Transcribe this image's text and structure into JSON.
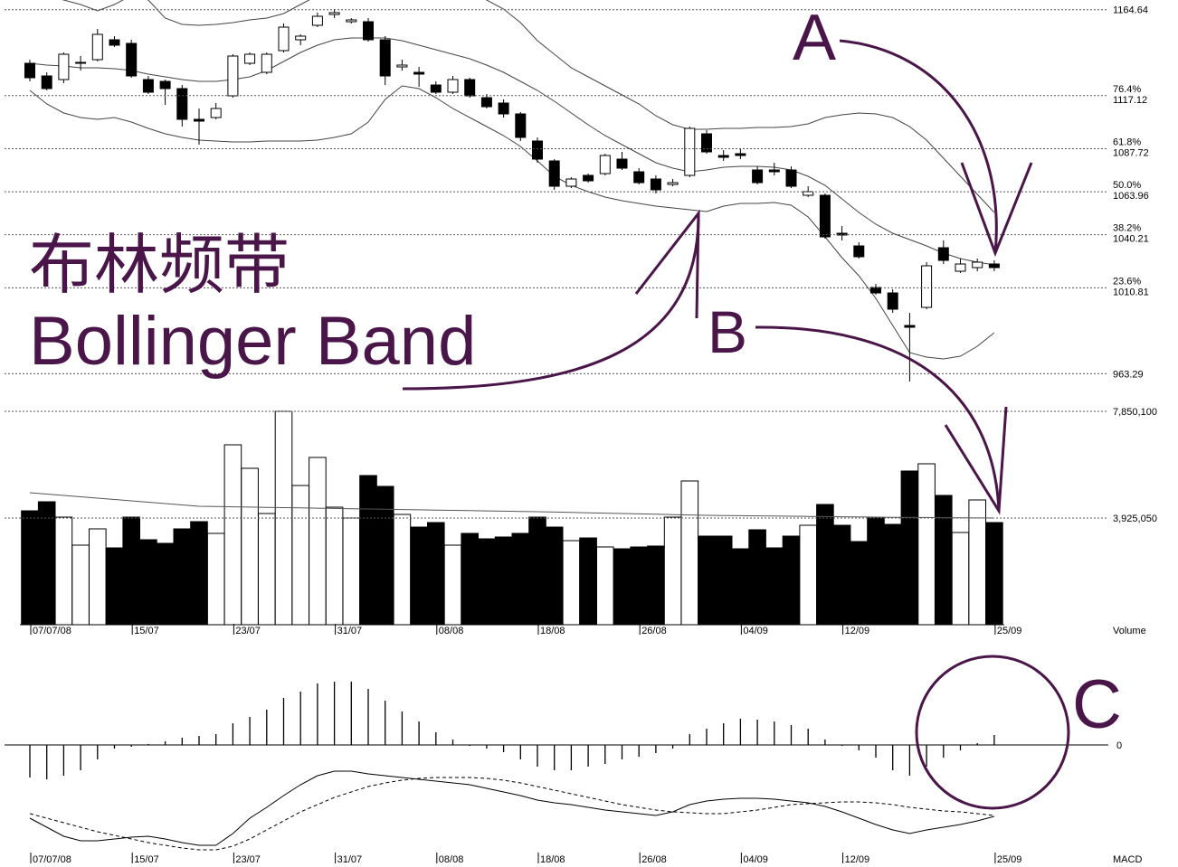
{
  "chart_data": [
    {
      "type": "candlestick",
      "title": "布林频带",
      "subtitle": "Bollinger Band",
      "annotations": [
        "A",
        "B",
        "C"
      ],
      "open": [
        1135,
        1128,
        1126,
        1135,
        1137,
        1148,
        1146,
        1126,
        1125,
        1121,
        1104,
        1105,
        1117,
        1135,
        1130,
        1142,
        1148,
        1156,
        1162,
        1158,
        1158,
        1148,
        1133,
        1130,
        1123,
        1119,
        1126,
        1116,
        1113,
        1107,
        1092,
        1081,
        1067,
        1073,
        1074,
        1082,
        1075,
        1071,
        1068,
        1073,
        1096,
        1084,
        1085,
        1076,
        1076,
        1076,
        1062,
        1062,
        1041,
        1034,
        1011,
        1008,
        990,
        1000,
        1033,
        1020,
        1022,
        1024
      ],
      "high": [
        1137,
        1130,
        1141,
        1139,
        1154,
        1150,
        1148,
        1128,
        1126,
        1123,
        1110,
        1113,
        1140,
        1141,
        1141,
        1157,
        1151,
        1163,
        1165,
        1160,
        1160,
        1150,
        1137,
        1133,
        1125,
        1128,
        1127,
        1118,
        1115,
        1108,
        1094,
        1082,
        1072,
        1074,
        1085,
        1086,
        1077,
        1073,
        1071,
        1100,
        1098,
        1087,
        1088,
        1078,
        1080,
        1078,
        1067,
        1063,
        1045,
        1036,
        1013,
        1010,
        997,
        1025,
        1037,
        1027,
        1027,
        1026
      ],
      "low": [
        1125,
        1120,
        1124,
        1131,
        1136,
        1144,
        1127,
        1118,
        1112,
        1100,
        1090,
        1104,
        1116,
        1134,
        1129,
        1141,
        1145,
        1155,
        1160,
        1157,
        1147,
        1123,
        1131,
        1122,
        1118,
        1118,
        1116,
        1110,
        1105,
        1092,
        1080,
        1065,
        1066,
        1069,
        1073,
        1076,
        1068,
        1063,
        1067,
        1072,
        1085,
        1081,
        1082,
        1068,
        1073,
        1066,
        1061,
        1038,
        1037,
        1027,
        1007,
        997,
        959,
        999,
        1024,
        1019,
        1020,
        1020
      ],
      "close": [
        1127,
        1121,
        1140,
        1135.5,
        1151,
        1145,
        1128,
        1119,
        1121,
        1104,
        1103,
        1110,
        1139,
        1140,
        1140,
        1155,
        1150,
        1161,
        1163,
        1159,
        1148,
        1128,
        1134,
        1129,
        1119,
        1126,
        1117,
        1111,
        1107,
        1094,
        1082,
        1067,
        1071,
        1070,
        1084,
        1077,
        1069,
        1065,
        1069,
        1099,
        1086,
        1083,
        1084,
        1069,
        1075,
        1067,
        1064,
        1039,
        1040,
        1028,
        1008,
        999,
        989,
        1023,
        1026,
        1024,
        1025,
        1022
      ],
      "bands": {
        "upper": [
          1175,
          1172.5,
          1170,
          1167.5,
          1164,
          1167.5,
          1172.5,
          1170,
          1160,
          1156.5,
          1156,
          1156.5,
          1157.5,
          1159,
          1160,
          1162.5,
          1167.5,
          1172.5,
          1175,
          1177.5,
          1180,
          1180,
          1180,
          1180,
          1177.5,
          1176,
          1174,
          1170,
          1165,
          1157.5,
          1147.5,
          1140,
          1132.5,
          1127.5,
          1122.5,
          1117.5,
          1112.5,
          1106,
          1101,
          1098.5,
          1098.5,
          1099,
          1099,
          1099.5,
          1099.5,
          1100,
          1101.5,
          1105,
          1106.5,
          1107.5,
          1107,
          1105,
          1100,
          1092.5,
          1082.5,
          1072.5,
          1062.5,
          1052.5
        ],
        "middle": [
          1135,
          1134,
          1133.5,
          1132.5,
          1132.5,
          1132,
          1131,
          1129,
          1127.5,
          1126,
          1125,
          1125,
          1126,
          1127.5,
          1131,
          1136,
          1141,
          1145,
          1148,
          1149,
          1149,
          1149,
          1147.5,
          1145,
          1142.5,
          1140,
          1137.5,
          1134,
          1130,
          1125,
          1120,
          1114,
          1107.5,
          1101,
          1095,
          1090,
          1085,
          1080,
          1077,
          1075,
          1076,
          1077.5,
          1078,
          1078,
          1077.5,
          1076,
          1072.5,
          1067.5,
          1060,
          1052.5,
          1046,
          1041,
          1037.5,
          1034,
          1030,
          1027,
          1025,
          1023.5
        ],
        "lower": [
          1120,
          1112.5,
          1107.5,
          1105,
          1104,
          1105,
          1102.5,
          1099,
          1096,
          1094,
          1092.5,
          1092,
          1091.5,
          1091.5,
          1092,
          1092,
          1092,
          1092.5,
          1094,
          1096,
          1102.5,
          1115,
          1122.5,
          1121,
          1116,
          1110,
          1105,
          1100,
          1095,
          1089,
          1081,
          1072.5,
          1067.5,
          1064,
          1061,
          1059,
          1057.5,
          1056,
          1055,
          1054,
          1053,
          1056,
          1057.5,
          1057.5,
          1058,
          1056.5,
          1050,
          1039,
          1027.5,
          1017.5,
          1005,
          990,
          975,
          972.5,
          971.5,
          973,
          978.5,
          986
        ]
      },
      "ylim": [
        950,
        1170
      ],
      "yticks": [
        1164.64,
        1117.12,
        1087.72,
        1063.96,
        1040.21,
        1010.81,
        963.29
      ],
      "fib_ratios": [
        null,
        "76.4%",
        "61.8%",
        "50.0%",
        "38.2%",
        "23.6%",
        null
      ],
      "grid": true
    },
    {
      "type": "bar",
      "label": "Volume",
      "categories": [
        "07/07/08",
        null,
        null,
        null,
        null,
        null,
        "15/07",
        null,
        null,
        null,
        null,
        null,
        "23/07",
        null,
        null,
        null,
        null,
        null,
        "31/07",
        null,
        null,
        null,
        null,
        null,
        "08/08",
        null,
        null,
        null,
        null,
        null,
        "18/08",
        null,
        null,
        null,
        null,
        null,
        "26/08",
        null,
        null,
        null,
        null,
        null,
        "04/09",
        null,
        null,
        null,
        null,
        null,
        "12/09",
        null,
        null,
        null,
        null,
        null,
        null,
        null,
        null,
        "25/09"
      ],
      "values": [
        4191000,
        4524000,
        3958000,
        2927000,
        3526000,
        2827000,
        3958000,
        3127000,
        2994000,
        3526000,
        3792000,
        3360000,
        6619000,
        5755000,
        4091000,
        7850000,
        5122000,
        6154000,
        4324000,
        3925000,
        5488000,
        5089000,
        4058000,
        3592000,
        3759000,
        2927000,
        3360000,
        3160000,
        3227000,
        3360000,
        3958000,
        3592000,
        3093000,
        3193000,
        2861000,
        2794000,
        2861000,
        2894000,
        3958000,
        5289000,
        3260000,
        3260000,
        2794000,
        3493000,
        2827000,
        3260000,
        3659000,
        4424000,
        3659000,
        3060000,
        3925000,
        3692000,
        5655000,
        5921000,
        4757000,
        3393000,
        4590000,
        3759000
      ],
      "average": [
        4856000,
        4806000,
        4756000,
        4706000,
        4656000,
        4607000,
        4557000,
        4507000,
        4457000,
        4407000,
        4357000,
        4347000,
        4337000,
        4327000,
        4317000,
        4307000,
        4298000,
        4288000,
        4278000,
        4268000,
        4258000,
        4248000,
        4238000,
        4228000,
        4218000,
        4208000,
        4198000,
        4188000,
        4178000,
        4168000,
        4158000,
        4145000,
        4131000,
        4118000,
        4105000,
        4091000,
        4078000,
        4065000,
        4051000,
        4038000,
        4025000,
        4018000,
        4012000,
        4005000,
        3998000,
        3992000,
        3985000,
        3978000,
        3971000,
        3965000,
        3958000,
        3953000,
        3948000,
        3944000,
        3939000,
        3934000,
        3930000,
        3925000
      ],
      "ylim": [
        0,
        7850100
      ],
      "yticks": [
        {
          "value": 3925050,
          "label": "3,925,050"
        },
        {
          "value": 7850100,
          "label": "7,850,100"
        }
      ],
      "grid": true
    },
    {
      "type": "macd",
      "label": "MACD",
      "histogram": [
        -3.6,
        -3.8,
        -3.4,
        -2.8,
        -1.6,
        -0.4,
        -0.2,
        0.1,
        0.4,
        0.8,
        1.0,
        1.2,
        2.4,
        3.1,
        3.9,
        5.2,
        5.9,
        6.8,
        7.0,
        7.0,
        6.2,
        4.9,
        3.7,
        2.6,
        1.4,
        0.6,
        -0.1,
        -0.4,
        -0.8,
        -1.6,
        -2.4,
        -2.8,
        -2.8,
        -2.4,
        -2.1,
        -1.6,
        -1.3,
        -0.9,
        -0.4,
        1.2,
        1.8,
        2.4,
        2.9,
        2.8,
        2.6,
        2.2,
        1.8,
        0.6,
        -0.1,
        -0.6,
        -1.4,
        -2.8,
        -3.4,
        -2.4,
        -1.4,
        -0.6,
        0.2,
        1.1
      ],
      "macd": [
        -8.1,
        -9.1,
        -10.1,
        -10.6,
        -10.6,
        -10.4,
        -10.2,
        -10.1,
        -10.4,
        -10.8,
        -11.1,
        -11.1,
        -9.8,
        -8.1,
        -6.9,
        -5.6,
        -4.4,
        -3.4,
        -2.9,
        -2.9,
        -3.2,
        -3.4,
        -3.6,
        -3.8,
        -4.0,
        -4.2,
        -4.4,
        -4.8,
        -5.2,
        -5.6,
        -6.1,
        -6.4,
        -6.6,
        -6.9,
        -7.2,
        -7.4,
        -7.6,
        -7.8,
        -7.4,
        -6.6,
        -6.2,
        -6.0,
        -5.9,
        -5.9,
        -6.0,
        -6.2,
        -6.4,
        -6.8,
        -7.4,
        -8.1,
        -8.8,
        -9.4,
        -9.8,
        -9.4,
        -9.1,
        -8.8,
        -8.4,
        -7.9
      ],
      "signal": [
        -7.6,
        -8.1,
        -8.6,
        -9.1,
        -9.6,
        -10.0,
        -10.4,
        -10.8,
        -11.1,
        -11.4,
        -11.6,
        -11.6,
        -11.2,
        -10.4,
        -9.4,
        -8.4,
        -7.4,
        -6.6,
        -5.8,
        -5.2,
        -4.6,
        -4.2,
        -3.9,
        -3.7,
        -3.6,
        -3.6,
        -3.6,
        -3.7,
        -3.9,
        -4.2,
        -4.6,
        -5.0,
        -5.4,
        -5.8,
        -6.2,
        -6.6,
        -6.9,
        -7.2,
        -7.4,
        -7.5,
        -7.6,
        -7.6,
        -7.4,
        -7.2,
        -6.9,
        -6.6,
        -6.5,
        -6.4,
        -6.3,
        -6.3,
        -6.4,
        -6.6,
        -6.9,
        -7.1,
        -7.3,
        -7.4,
        -7.6,
        -7.8
      ],
      "ylim": [
        -13.6,
        10.4
      ],
      "yticks": [
        0
      ]
    }
  ]
}
